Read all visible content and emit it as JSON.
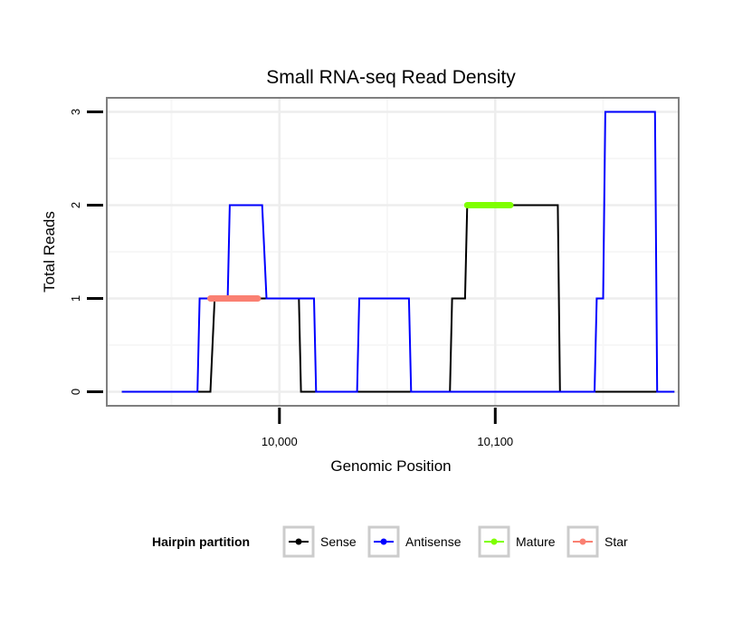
{
  "chart_data": {
    "type": "line",
    "title": "Small RNA-seq Read Density",
    "xlabel": "Genomic Position",
    "ylabel": "Total Reads",
    "xlim": [
      9920,
      10185
    ],
    "ylim": [
      -0.15,
      3.15
    ],
    "x_ticks": [
      10000,
      10100
    ],
    "x_tick_labels": [
      "10,000",
      "10,100"
    ],
    "y_ticks": [
      0,
      1,
      2,
      3
    ],
    "y_tick_labels": [
      "0",
      "1",
      "2",
      "3"
    ],
    "grid": true,
    "legend": {
      "title": "Hairpin partition",
      "position": "bottom",
      "entries": [
        {
          "label": "Sense",
          "color": "#000000"
        },
        {
          "label": "Antisense",
          "color": "#0000ff"
        },
        {
          "label": "Mature",
          "color": "#7fff00"
        },
        {
          "label": "Star",
          "color": "#fa8072"
        }
      ]
    },
    "series": [
      {
        "name": "Sense",
        "color": "#000000",
        "x": [
          9927,
          9968,
          9970,
          9990,
          10007,
          10008,
          10009,
          10010,
          10020,
          10027,
          10029,
          10054,
          10079,
          10080,
          10086,
          10087,
          10120,
          10129,
          10130,
          10151,
          10183
        ],
        "y": [
          0,
          0,
          1,
          1,
          1,
          1,
          1,
          0,
          0,
          0,
          0,
          0,
          0,
          1,
          1,
          2,
          2,
          2,
          0,
          0,
          0
        ]
      },
      {
        "name": "Antisense",
        "color": "#0000ff",
        "x": [
          9927,
          9962,
          9963,
          9976,
          9977,
          9992,
          9994,
          10016,
          10017,
          10036,
          10037,
          10060,
          10061,
          10079,
          10080,
          10086,
          10087,
          10120,
          10121,
          10146,
          10147,
          10150,
          10151,
          10174,
          10175,
          10183
        ],
        "y": [
          0,
          0,
          1,
          1,
          2,
          2,
          1,
          1,
          0,
          0,
          1,
          1,
          0,
          0,
          0,
          0,
          0,
          0,
          0,
          0,
          1,
          1,
          3,
          3,
          0,
          0
        ]
      },
      {
        "name": "Mature",
        "color": "#7fff00",
        "x": [
          10087,
          10107
        ],
        "y": [
          2,
          2
        ]
      },
      {
        "name": "Star",
        "color": "#fa8072",
        "x": [
          9968,
          9990
        ],
        "y": [
          1,
          1
        ]
      }
    ]
  }
}
